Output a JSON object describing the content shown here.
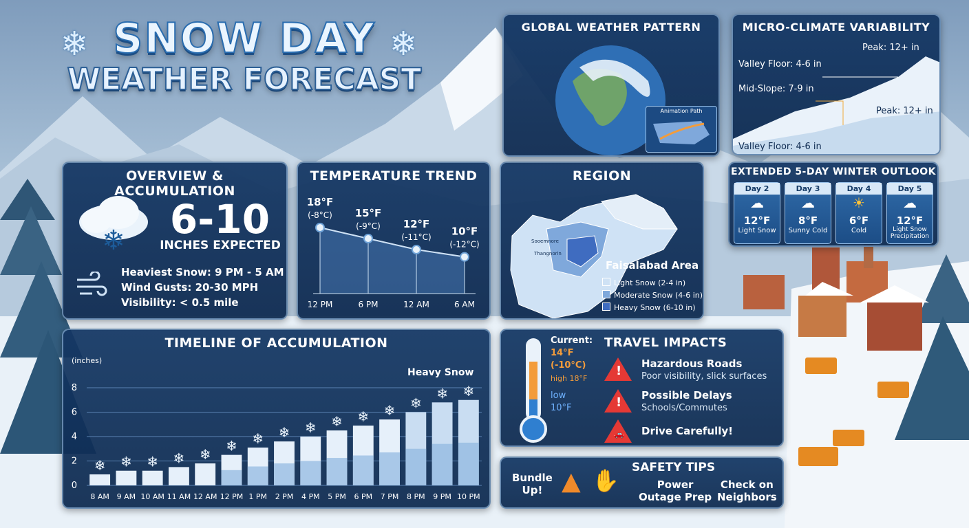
{
  "title": {
    "line1": "SNOW DAY",
    "line2": "WEATHER FORECAST"
  },
  "overview": {
    "heading": "OVERVIEW & ACCUMULATION",
    "amount": "6-10",
    "amount_label": "INCHES EXPECTED",
    "heaviest": "Heaviest Snow: 9 PM - 5 AM",
    "wind": "Wind Gusts: 20-30 MPH",
    "visibility": "Visibility: < 0.5 mile"
  },
  "temperature": {
    "heading": "TEMPERATURE TREND",
    "points": [
      {
        "time": "12 PM",
        "f": "18°F",
        "c": "(-8°C)",
        "value": 18
      },
      {
        "time": "6 PM",
        "f": "15°F",
        "c": "(-9°C)",
        "value": 15
      },
      {
        "time": "12 AM",
        "f": "12°F",
        "c": "(-11°C)",
        "value": 12
      },
      {
        "time": "6 AM",
        "f": "10°F",
        "c": "(-12°C)",
        "value": 10
      }
    ]
  },
  "region": {
    "heading": "REGION",
    "area": "Faisalabad Area",
    "legend": [
      {
        "label": "Light Snow (2-4 in)",
        "color": "#cfe2f5"
      },
      {
        "label": "Moderate Snow (4-6 in)",
        "color": "#7fa8db"
      },
      {
        "label": "Heavy Snow (6-10 in)",
        "color": "#3f6cc0"
      }
    ],
    "places": [
      "Sooemnore",
      "Thangnorin"
    ]
  },
  "global": {
    "heading": "GLOBAL WEATHER PATTERN",
    "inset": "Animation Path"
  },
  "micro": {
    "heading": "MICRO-CLIMATE VARIABILITY",
    "peak_top": "Peak: 12+ in",
    "valley_top": "Valley Floor: 4-6 in",
    "mid": "Mid-Slope: 7-9 in",
    "peak_right": "Peak: 12+ in",
    "valley_bottom": "Valley Floor: 4-6 in"
  },
  "outlook": {
    "heading": "EXTENDED 5-DAY WINTER OUTLOOK",
    "days": [
      {
        "day": "Day 2",
        "temp": "12°F",
        "cond": "Light Snow",
        "icon": "snow-cloud-icon"
      },
      {
        "day": "Day 3",
        "temp": "8°F",
        "cond": "Sunny Cold",
        "icon": "snow-cloud-icon"
      },
      {
        "day": "Day 4",
        "temp": "6°F",
        "cond": "Cold",
        "icon": "sun-icon"
      },
      {
        "day": "Day 5",
        "temp": "12°F",
        "cond": "Light Snow Precipitation",
        "icon": "snow-cloud-icon"
      }
    ]
  },
  "travel": {
    "heading": "TRAVEL IMPACTS",
    "current_label": "Current:",
    "current_f": "14°F",
    "current_c": "(-10°C)",
    "high": "high 18°F",
    "low_label": "low",
    "low_val": "10°F",
    "items": [
      {
        "title": "Hazardous Roads",
        "desc": "Poor visibility, slick surfaces"
      },
      {
        "title": "Possible Delays",
        "desc": "Schools/Commutes"
      },
      {
        "title": "Drive Carefully!",
        "desc": ""
      }
    ]
  },
  "safety": {
    "heading": "SAFETY TIPS",
    "bundle": [
      "Bundle",
      "Up!"
    ],
    "power": [
      "Power",
      "Outage Prep"
    ],
    "neighbors": [
      "Check on",
      "Neighbors"
    ]
  },
  "chart_data": {
    "type": "bar",
    "title": "TIMELINE OF ACCUMULATION",
    "ylabel": "(inches)",
    "annotation": "Heavy Snow",
    "ylim": [
      0,
      8
    ],
    "yticks": [
      0,
      2,
      4,
      6,
      8
    ],
    "categories": [
      "8 AM",
      "9 AM",
      "10 AM",
      "11 AM",
      "12 AM",
      "12 PM",
      "1 PM",
      "2 PM",
      "4 PM",
      "5 PM",
      "6 PM",
      "7 PM",
      "8 PM",
      "9 PM",
      "10 PM"
    ],
    "values": [
      0.9,
      1.2,
      1.2,
      1.5,
      1.8,
      2.5,
      3.1,
      3.6,
      4.0,
      4.5,
      4.9,
      5.4,
      6.0,
      6.8,
      7.0
    ],
    "grid": true
  }
}
